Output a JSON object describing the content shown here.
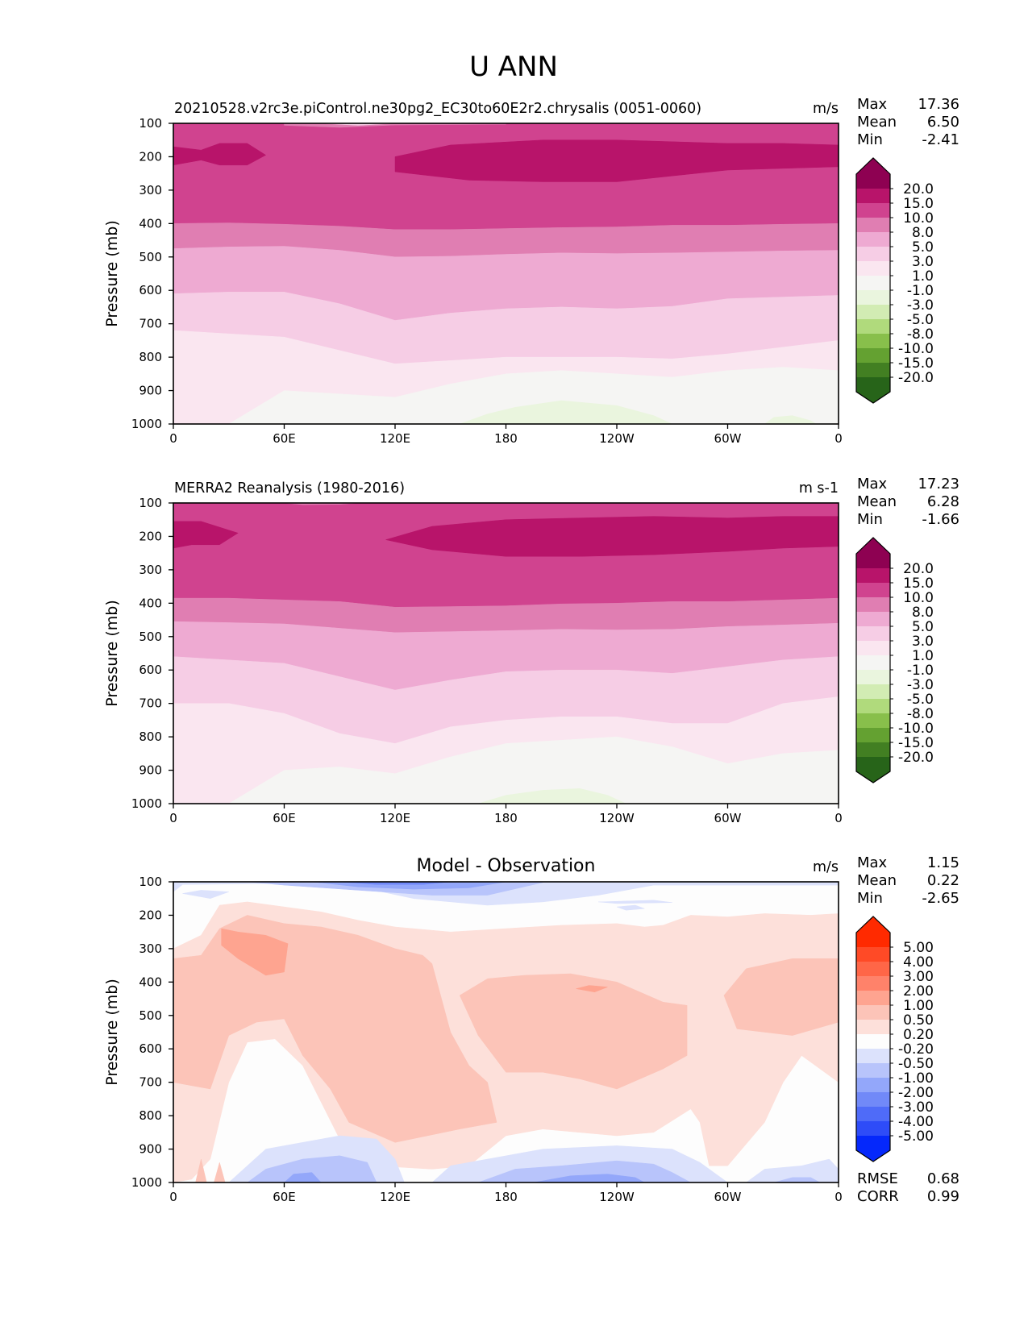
{
  "figure_title": "U ANN",
  "chart_data": [
    {
      "type": "heatmap",
      "subtype": "filled-contour",
      "title_left": "20210528.v2rc3e.piControl.ne30pg2_EC30to60E2r2.chrysalis (0051-0060)",
      "units": "m/s",
      "ylabel": "Pressure (mb)",
      "xlabel": "",
      "xticks": [
        "0",
        "60E",
        "120E",
        "180",
        "120W",
        "60W",
        "0"
      ],
      "yticks": [
        "100",
        "200",
        "300",
        "400",
        "500",
        "600",
        "700",
        "800",
        "900",
        "1000"
      ],
      "xlim": [
        0,
        360
      ],
      "ylim": [
        1000,
        100
      ],
      "stats": {
        "labels": [
          "Max",
          "Mean",
          "Min"
        ],
        "values": [
          "17.36",
          "6.50",
          "-2.41"
        ]
      },
      "colorbar": {
        "levels": [
          "20.0",
          "15.0",
          "10.0",
          "8.0",
          "5.0",
          "3.0",
          "1.0",
          "-1.0",
          "-3.0",
          "-5.0",
          "-8.0",
          "-10.0",
          "-15.0",
          "-20.0"
        ],
        "colors": [
          "#8e0152",
          "#b8146a",
          "#d0438f",
          "#e07eb2",
          "#eeaad2",
          "#f6cde5",
          "#fae6f0",
          "#f5f5f3",
          "#eaf5de",
          "#d2ecb3",
          "#b0da7c",
          "#88bf4b",
          "#64a131",
          "#427f22",
          "#276419"
        ],
        "extend": "both"
      },
      "bands_top_to_bottom_approx": [
        {
          "level_range": "10-15",
          "pressure_mb": [
            100,
            400
          ]
        },
        {
          "level_range": "15-20",
          "pressure_mb": [
            150,
            270
          ],
          "note": "jet core cells"
        },
        {
          "level_range": "8-10",
          "pressure_mb": [
            400,
            480
          ]
        },
        {
          "level_range": "5-8",
          "pressure_mb": [
            480,
            620
          ]
        },
        {
          "level_range": "3-5",
          "pressure_mb": [
            620,
            730
          ]
        },
        {
          "level_range": "1-3",
          "pressure_mb": [
            730,
            900
          ]
        },
        {
          "level_range": "-1-1",
          "pressure_mb": [
            900,
            1000
          ]
        },
        {
          "level_range": "-3--1",
          "pressure_mb": [
            950,
            1000
          ],
          "note": "near 150W-180"
        }
      ]
    },
    {
      "type": "heatmap",
      "subtype": "filled-contour",
      "title_left": "MERRA2 Reanalysis (1980-2016)",
      "units": "m s-1",
      "ylabel": "Pressure (mb)",
      "xlabel": "",
      "xticks": [
        "0",
        "60E",
        "120E",
        "180",
        "120W",
        "60W",
        "0"
      ],
      "yticks": [
        "100",
        "200",
        "300",
        "400",
        "500",
        "600",
        "700",
        "800",
        "900",
        "1000"
      ],
      "xlim": [
        0,
        360
      ],
      "ylim": [
        1000,
        100
      ],
      "stats": {
        "labels": [
          "Max",
          "Mean",
          "Min"
        ],
        "values": [
          "17.23",
          "6.28",
          "-1.66"
        ]
      },
      "colorbar": {
        "levels": [
          "20.0",
          "15.0",
          "10.0",
          "8.0",
          "5.0",
          "3.0",
          "1.0",
          "-1.0",
          "-3.0",
          "-5.0",
          "-8.0",
          "-10.0",
          "-15.0",
          "-20.0"
        ],
        "colors": [
          "#8e0152",
          "#b8146a",
          "#d0438f",
          "#e07eb2",
          "#eeaad2",
          "#f6cde5",
          "#fae6f0",
          "#f5f5f3",
          "#eaf5de",
          "#d2ecb3",
          "#b0da7c",
          "#88bf4b",
          "#64a131",
          "#427f22",
          "#276419"
        ],
        "extend": "both"
      }
    },
    {
      "type": "heatmap",
      "subtype": "filled-contour",
      "title_center": "Model - Observation",
      "units": "m/s",
      "ylabel": "Pressure (mb)",
      "xlabel": "",
      "xticks": [
        "0",
        "60E",
        "120E",
        "180",
        "120W",
        "60W",
        "0"
      ],
      "yticks": [
        "100",
        "200",
        "300",
        "400",
        "500",
        "600",
        "700",
        "800",
        "900",
        "1000"
      ],
      "xlim": [
        0,
        360
      ],
      "ylim": [
        1000,
        100
      ],
      "stats": {
        "labels": [
          "Max",
          "Mean",
          "Min"
        ],
        "values": [
          "1.15",
          "0.22",
          "-2.65"
        ]
      },
      "metrics": {
        "labels": [
          "RMSE",
          "CORR"
        ],
        "values": [
          "0.68",
          "0.99"
        ]
      },
      "colorbar": {
        "levels": [
          "5.00",
          "4.00",
          "3.00",
          "2.00",
          "1.00",
          "0.50",
          "0.20",
          "-0.20",
          "-0.50",
          "-1.00",
          "-2.00",
          "-3.00",
          "-4.00",
          "-5.00"
        ],
        "colors": [
          "#ff2a00",
          "#ff4a26",
          "#ff6647",
          "#ff826a",
          "#fea490",
          "#fcc4b8",
          "#fde0da",
          "#fdfdfd",
          "#dce2fc",
          "#b8c4fb",
          "#93a7fa",
          "#7189f8",
          "#4f6bf8",
          "#2e4cf8",
          "#0528fb"
        ],
        "extend": "both"
      }
    }
  ]
}
